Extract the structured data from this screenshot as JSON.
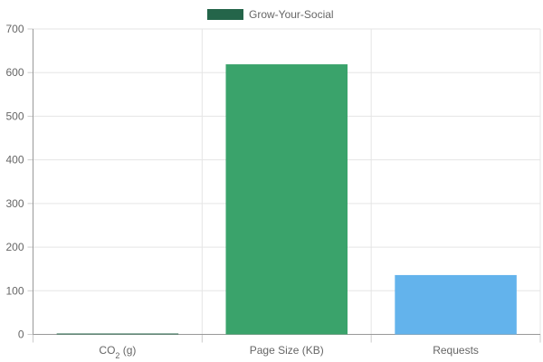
{
  "chart_data": {
    "type": "bar",
    "categories": [
      "CO2 (g)",
      "Page Size (KB)",
      "Requests"
    ],
    "category_labels": [
      {
        "parts": [
          {
            "text": "CO",
            "sub": false
          },
          {
            "text": "2",
            "sub": true
          },
          {
            "text": " (g)",
            "sub": false
          }
        ]
      },
      {
        "parts": [
          {
            "text": "Page Size (KB)",
            "sub": false
          }
        ]
      },
      {
        "parts": [
          {
            "text": "Requests",
            "sub": false
          }
        ]
      }
    ],
    "series": [
      {
        "name": "Grow-Your-Social",
        "values": [
          0.5,
          619,
          136
        ]
      }
    ],
    "bar_colors": [
      "#2a6a4f",
      "#3aa36b",
      "#63b3ec"
    ],
    "legend_color": "#24654a",
    "title": "",
    "xlabel": "",
    "ylabel": "",
    "ylim": [
      0,
      700
    ],
    "yticks": [
      0,
      100,
      200,
      300,
      400,
      500,
      600,
      700
    ],
    "grid": true,
    "legend_position": "top-center"
  }
}
